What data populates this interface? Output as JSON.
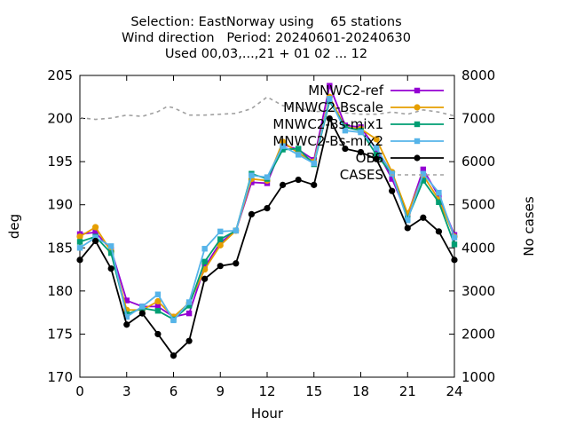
{
  "chart_data": {
    "type": "line",
    "title_lines": [
      "Selection: EastNorway using    65 stations",
      "Wind direction   Period: 20240601-20240630",
      "Used 00,03,...,21 + 01 02 ... 12"
    ],
    "xlabel": "Hour",
    "ylabel": "deg",
    "y2label": "No cases",
    "xlim": [
      0,
      24
    ],
    "ylim": [
      170,
      205
    ],
    "y2lim": [
      1000,
      8000
    ],
    "xticks": [
      0,
      3,
      6,
      9,
      12,
      15,
      18,
      21,
      24
    ],
    "yticks": [
      170,
      175,
      180,
      185,
      190,
      195,
      200,
      205
    ],
    "y2ticks": [
      1000,
      2000,
      3000,
      4000,
      5000,
      6000,
      7000,
      8000
    ],
    "legend_position": "top-right",
    "x": [
      0,
      1,
      2,
      3,
      4,
      5,
      6,
      7,
      8,
      9,
      10,
      11,
      12,
      13,
      14,
      15,
      16,
      17,
      18,
      19,
      20,
      21,
      22,
      23,
      24
    ],
    "series": [
      {
        "name": "MNWC2-ref",
        "color": "#9400d3",
        "marker": "square",
        "axis": "y1",
        "values": [
          186.6,
          186.8,
          184.8,
          178.9,
          178.2,
          178.2,
          177.0,
          177.4,
          182.8,
          185.6,
          187.0,
          192.6,
          192.5,
          197.0,
          196.4,
          195.2,
          203.8,
          199.2,
          199.0,
          196.4,
          193.0,
          188.8,
          194.1,
          191.0,
          186.5
        ]
      },
      {
        "name": "MNWC2-Bscale",
        "color": "#e69f00",
        "marker": "circle",
        "axis": "y1",
        "values": [
          186.3,
          187.4,
          184.6,
          177.8,
          177.8,
          178.8,
          177.0,
          178.6,
          182.5,
          185.3,
          187.0,
          193.0,
          192.8,
          197.3,
          196.0,
          195.0,
          202.5,
          199.0,
          198.8,
          197.6,
          193.8,
          189.0,
          193.4,
          190.6,
          186.3
        ]
      },
      {
        "name": "MNWC2-Bs-mix1",
        "color": "#009e73",
        "marker": "square",
        "axis": "y1",
        "values": [
          185.7,
          186.3,
          184.4,
          177.3,
          178.0,
          177.7,
          176.7,
          178.3,
          183.4,
          186.0,
          187.0,
          193.6,
          193.0,
          196.4,
          196.5,
          194.7,
          202.0,
          199.0,
          198.6,
          195.8,
          193.6,
          188.4,
          192.8,
          190.3,
          185.4
        ]
      },
      {
        "name": "MNWC2-Bs-mix2",
        "color": "#56b4e9",
        "marker": "square",
        "axis": "y1",
        "values": [
          185.0,
          186.2,
          185.2,
          177.0,
          178.2,
          179.6,
          176.6,
          178.7,
          184.9,
          186.9,
          187.0,
          193.4,
          193.2,
          196.8,
          195.8,
          194.8,
          202.3,
          198.6,
          198.4,
          196.6,
          193.6,
          188.2,
          193.6,
          191.4,
          186.2
        ]
      },
      {
        "name": "OBS",
        "color": "#000000",
        "marker": "circle",
        "axis": "y1",
        "values": [
          183.6,
          185.8,
          182.6,
          176.1,
          177.4,
          175.0,
          172.5,
          174.2,
          181.4,
          182.9,
          183.2,
          188.9,
          189.6,
          192.3,
          192.9,
          192.3,
          200.0,
          196.5,
          196.1,
          195.3,
          191.6,
          187.3,
          188.5,
          186.9,
          183.6
        ]
      },
      {
        "name": "CASES",
        "color": "#a0a0a0",
        "marker": "none",
        "dashed": true,
        "axis": "y2",
        "x": [
          0,
          1,
          2,
          3,
          4,
          5,
          5.6,
          6,
          7,
          8,
          9,
          10,
          11,
          12,
          13,
          14,
          15,
          16,
          17,
          18,
          19,
          20,
          21,
          22,
          23,
          24
        ],
        "values": [
          7020,
          6980,
          7010,
          7080,
          7050,
          7160,
          7280,
          7250,
          7080,
          7080,
          7100,
          7120,
          7230,
          7500,
          7300,
          7250,
          7160,
          7180,
          7130,
          7100,
          7100,
          7150,
          7100,
          7200,
          7150,
          7060
        ]
      }
    ]
  }
}
